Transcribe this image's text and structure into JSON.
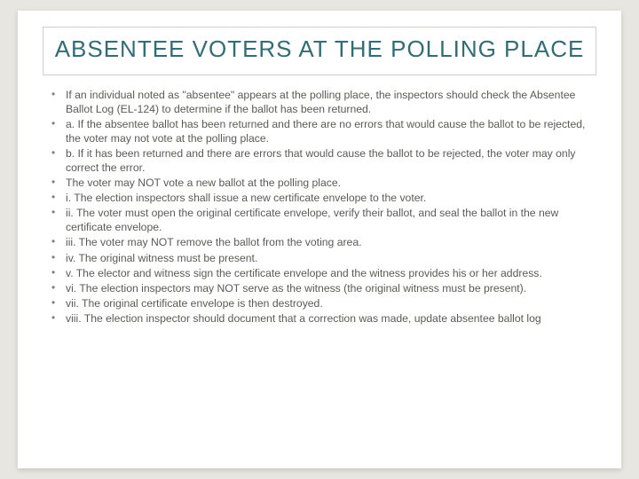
{
  "title_color": "#2f6e78",
  "text_color": "#5a5a55",
  "bullet_color": "#80807a",
  "background_outer": "#e8e6e1",
  "background_slide": "#ffffff",
  "title_border": "#cfcfcf",
  "title_fontsize": 26,
  "body_fontsize": 12.2,
  "title": "ABSENTEE VOTERS AT THE POLLING PLACE",
  "bullets": [
    "If an individual noted as \"absentee\" appears at the polling place, the inspectors should check the Absentee Ballot Log (EL-124) to determine if the ballot has been returned.",
    "a. If the absentee ballot has been returned and there are no errors that would cause the ballot to be rejected, the voter may not vote at the polling place.",
    "b. If it has been returned and there are errors that would cause the ballot to be rejected, the voter may only correct the error.",
    "The voter may NOT vote a new ballot at the polling place.",
    "i. The election inspectors shall issue a new certificate envelope to the voter.",
    "ii. The voter must open the original certificate envelope, verify their ballot, and seal the ballot in the new certificate envelope.",
    "iii. The voter may NOT remove the ballot from the voting area.",
    "iv. The original witness must be present.",
    "v. The elector and witness sign the certificate envelope and the witness provides his or her address.",
    "vi. The election inspectors may NOT serve as the witness (the original witness must be present).",
    "vii. The original certificate envelope is then destroyed.",
    "viii. The election inspector should document that a correction was made, update absentee ballot log"
  ]
}
